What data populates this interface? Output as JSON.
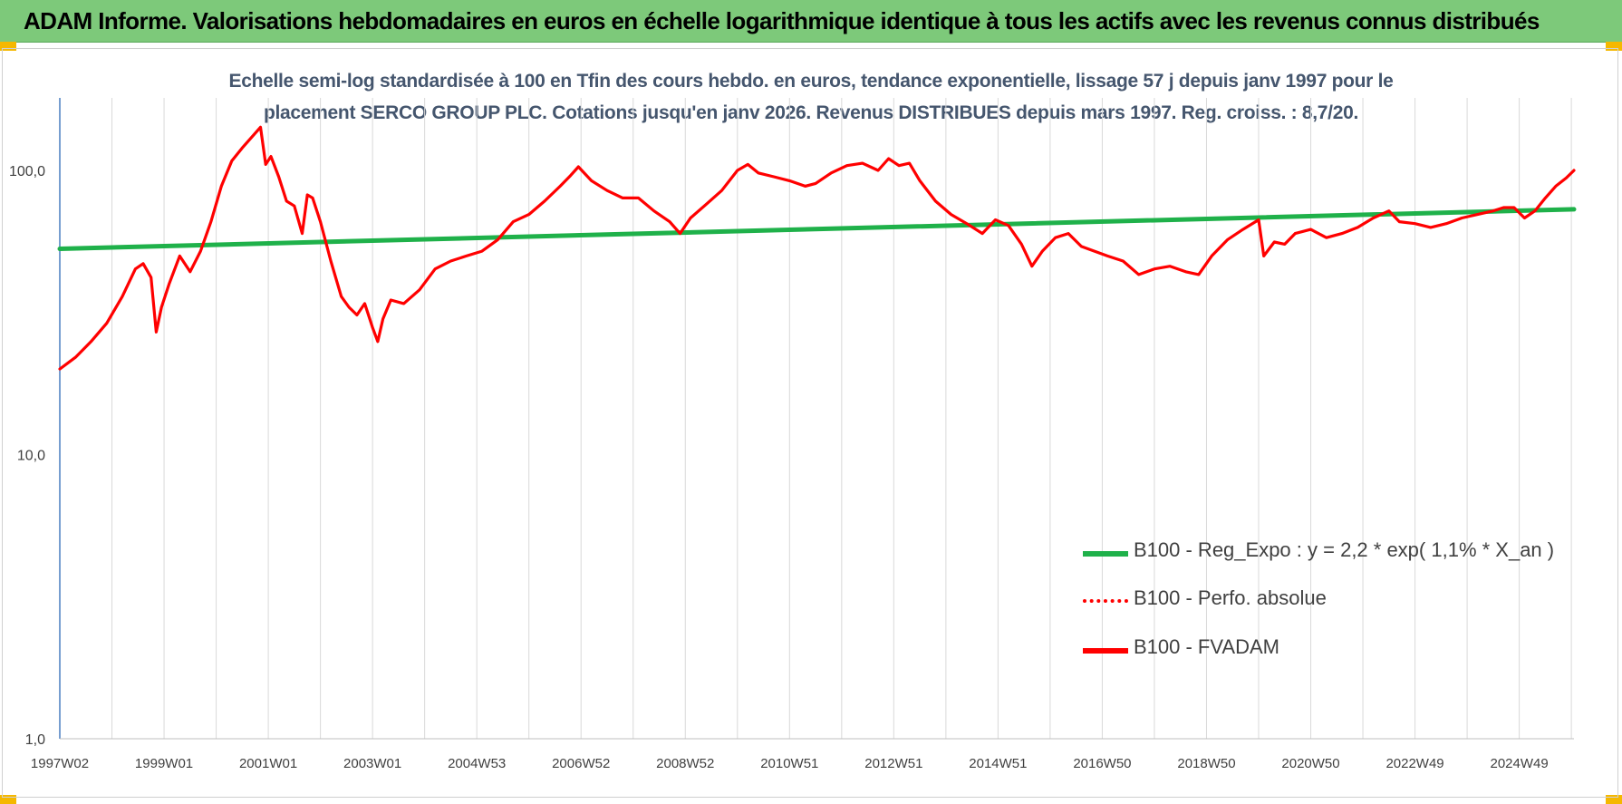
{
  "banner": {
    "title": "ADAM Informe. Valorisations hebdomadaires en euros en échelle logarithmique identique à tous les actifs avec les revenus connus distribués"
  },
  "colors": {
    "banner_bg": "#7dc97a",
    "corner_accent": "#f5b800",
    "trend": "#1fb14a",
    "performance": "#ff0000",
    "axis": "#4a7fc0",
    "grid": "#d9d9d9",
    "title_text": "#45566e"
  },
  "chart_data": {
    "type": "line",
    "title_line1": "Echelle semi-log standardisée à 100 en Tfin des cours hebdo. en euros, tendance exponentielle, lissage 57 j depuis janv 1997 pour le",
    "title_line2": "placement SERCO GROUP PLC. Cotations jusqu'en janv 2026.  Revenus DISTRIBUES depuis mars 1997. Reg. croiss. : 8,7/20.",
    "y_scale": "log",
    "ylim": [
      1,
      180
    ],
    "y_ticks": [
      1,
      10,
      100
    ],
    "y_tick_labels": [
      "1,0",
      "10,0",
      "100,0"
    ],
    "x_range": [
      1997.0,
      2026.05
    ],
    "x_ticks": [
      1997.0,
      1999.0,
      2001.0,
      2003.0,
      2005.0,
      2007.0,
      2009.0,
      2011.0,
      2013.0,
      2015.0,
      2017.0,
      2019.0,
      2021.0,
      2023.0,
      2025.0
    ],
    "x_tick_labels": [
      "1997W02",
      "1999W01",
      "2001W01",
      "2003W01",
      "2004W53",
      "2006W52",
      "2008W52",
      "2010W51",
      "2012W51",
      "2014W51",
      "2016W50",
      "2018W50",
      "2020W50",
      "2022W49",
      "2024W49"
    ],
    "grid": "vertical",
    "legend_position": "bottom-right",
    "series": [
      {
        "name": "B100 - Reg_Expo : y = 2,2 * exp( 1,1% *  X_an )",
        "style": "solid",
        "color": "#1fb14a",
        "x": [
          1997.0,
          2026.05
        ],
        "y": [
          53,
          73
        ]
      },
      {
        "name": "B100 - Perfo. absolue",
        "style": "dotted",
        "color": "#ff0000",
        "x": [],
        "y": []
      },
      {
        "name": "B100 - FVADAM",
        "style": "solid",
        "color": "#ff0000",
        "x": [
          1997.0,
          1997.3,
          1997.6,
          1997.9,
          1998.2,
          1998.45,
          1998.6,
          1998.75,
          1998.85,
          1998.95,
          1999.1,
          1999.3,
          1999.5,
          1999.7,
          1999.9,
          2000.1,
          2000.3,
          2000.5,
          2000.7,
          2000.85,
          2000.95,
          2001.05,
          2001.2,
          2001.35,
          2001.5,
          2001.65,
          2001.75,
          2001.85,
          2002.0,
          2002.2,
          2002.4,
          2002.55,
          2002.7,
          2002.85,
          2003.0,
          2003.1,
          2003.2,
          2003.35,
          2003.6,
          2003.9,
          2004.2,
          2004.5,
          2004.8,
          2005.1,
          2005.4,
          2005.7,
          2006.0,
          2006.3,
          2006.6,
          2006.8,
          2006.95,
          2007.2,
          2007.5,
          2007.8,
          2008.1,
          2008.4,
          2008.7,
          2008.9,
          2009.1,
          2009.4,
          2009.7,
          2010.0,
          2010.2,
          2010.4,
          2010.7,
          2011.0,
          2011.3,
          2011.5,
          2011.8,
          2012.1,
          2012.4,
          2012.7,
          2012.9,
          2013.1,
          2013.3,
          2013.5,
          2013.8,
          2014.1,
          2014.4,
          2014.7,
          2014.95,
          2015.2,
          2015.45,
          2015.65,
          2015.85,
          2016.1,
          2016.35,
          2016.6,
          2016.85,
          2017.1,
          2017.4,
          2017.7,
          2018.0,
          2018.3,
          2018.6,
          2018.85,
          2019.1,
          2019.4,
          2019.7,
          2020.0,
          2020.1,
          2020.3,
          2020.5,
          2020.7,
          2021.0,
          2021.3,
          2021.6,
          2021.9,
          2022.2,
          2022.5,
          2022.7,
          2023.0,
          2023.3,
          2023.6,
          2023.9,
          2024.2,
          2024.5,
          2024.7,
          2024.9,
          2025.1,
          2025.3,
          2025.5,
          2025.7,
          2025.9,
          2026.05
        ],
        "y": [
          20,
          22,
          25,
          29,
          36,
          45,
          47,
          42,
          27,
          33,
          40,
          50,
          44,
          52,
          66,
          88,
          108,
          120,
          132,
          142,
          105,
          112,
          95,
          78,
          75,
          60,
          82,
          80,
          66,
          48,
          36,
          33,
          31,
          34,
          28,
          25,
          30,
          35,
          34,
          38,
          45,
          48,
          50,
          52,
          57,
          66,
          70,
          78,
          88,
          96,
          103,
          92,
          85,
          80,
          80,
          72,
          66,
          60,
          68,
          76,
          85,
          100,
          105,
          98,
          95,
          92,
          88,
          90,
          98,
          104,
          106,
          100,
          110,
          104,
          106,
          92,
          78,
          70,
          65,
          60,
          67,
          64,
          55,
          46,
          52,
          58,
          60,
          54,
          52,
          50,
          48,
          43,
          45,
          46,
          44,
          43,
          50,
          57,
          62,
          67,
          50,
          56,
          55,
          60,
          62,
          58,
          60,
          63,
          68,
          72,
          66,
          65,
          63,
          65,
          68,
          70,
          72,
          74,
          74,
          68,
          72,
          80,
          88,
          94,
          100
        ]
      }
    ]
  }
}
